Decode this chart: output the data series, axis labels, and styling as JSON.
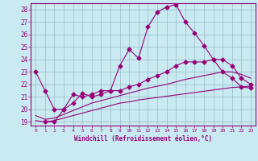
{
  "background_color": "#c8eaf0",
  "line_color": "#990077",
  "grid_color": "#99bbcc",
  "xlabel": "Windchill (Refroidissement éolien,°C)",
  "xlim": [
    -0.5,
    23.5
  ],
  "ylim": [
    18.7,
    28.5
  ],
  "yticks": [
    19,
    20,
    21,
    22,
    23,
    24,
    25,
    26,
    27,
    28
  ],
  "xticks": [
    0,
    1,
    2,
    3,
    4,
    5,
    6,
    7,
    8,
    9,
    10,
    11,
    12,
    13,
    14,
    15,
    16,
    17,
    18,
    19,
    20,
    21,
    22,
    23
  ],
  "series": [
    {
      "x": [
        0,
        1,
        2,
        3,
        4,
        5,
        6,
        7,
        8,
        9,
        10,
        11,
        12,
        13,
        14,
        15,
        16,
        17,
        18,
        19,
        20,
        21,
        22,
        23
      ],
      "y": [
        23.0,
        21.5,
        20.0,
        20.0,
        21.2,
        21.0,
        21.2,
        21.5,
        21.5,
        23.5,
        24.8,
        24.1,
        26.6,
        27.8,
        28.2,
        28.4,
        27.0,
        26.1,
        25.1,
        24.0,
        23.0,
        22.5,
        21.8,
        21.7
      ],
      "marker": "D",
      "markersize": 2.5
    },
    {
      "x": [
        1,
        2,
        3,
        4,
        5,
        6,
        7,
        8,
        9,
        10,
        11,
        12,
        13,
        14,
        15,
        16,
        17,
        18,
        19,
        20,
        21,
        22,
        23
      ],
      "y": [
        19.0,
        19.0,
        20.0,
        20.5,
        21.3,
        21.0,
        21.2,
        21.5,
        21.5,
        21.8,
        22.0,
        22.4,
        22.7,
        23.0,
        23.5,
        23.8,
        23.8,
        23.8,
        24.0,
        24.0,
        23.5,
        22.5,
        22.0
      ],
      "marker": "D",
      "markersize": 2.5
    },
    {
      "x": [
        0,
        1,
        2,
        3,
        4,
        5,
        6,
        7,
        8,
        9,
        10,
        11,
        12,
        13,
        14,
        15,
        16,
        17,
        18,
        19,
        20,
        21,
        22,
        23
      ],
      "y": [
        19.5,
        19.2,
        19.3,
        19.6,
        19.9,
        20.2,
        20.5,
        20.7,
        20.9,
        21.1,
        21.3,
        21.5,
        21.7,
        21.85,
        22.0,
        22.2,
        22.4,
        22.55,
        22.7,
        22.85,
        23.0,
        23.0,
        22.8,
        22.5
      ],
      "marker": null,
      "markersize": 0
    },
    {
      "x": [
        0,
        1,
        2,
        3,
        4,
        5,
        6,
        7,
        8,
        9,
        10,
        11,
        12,
        13,
        14,
        15,
        16,
        17,
        18,
        19,
        20,
        21,
        22,
        23
      ],
      "y": [
        19.1,
        19.0,
        19.1,
        19.3,
        19.5,
        19.7,
        19.9,
        20.1,
        20.3,
        20.5,
        20.6,
        20.75,
        20.85,
        20.95,
        21.05,
        21.15,
        21.25,
        21.35,
        21.45,
        21.55,
        21.65,
        21.75,
        21.8,
        21.85
      ],
      "marker": null,
      "markersize": 0
    }
  ]
}
